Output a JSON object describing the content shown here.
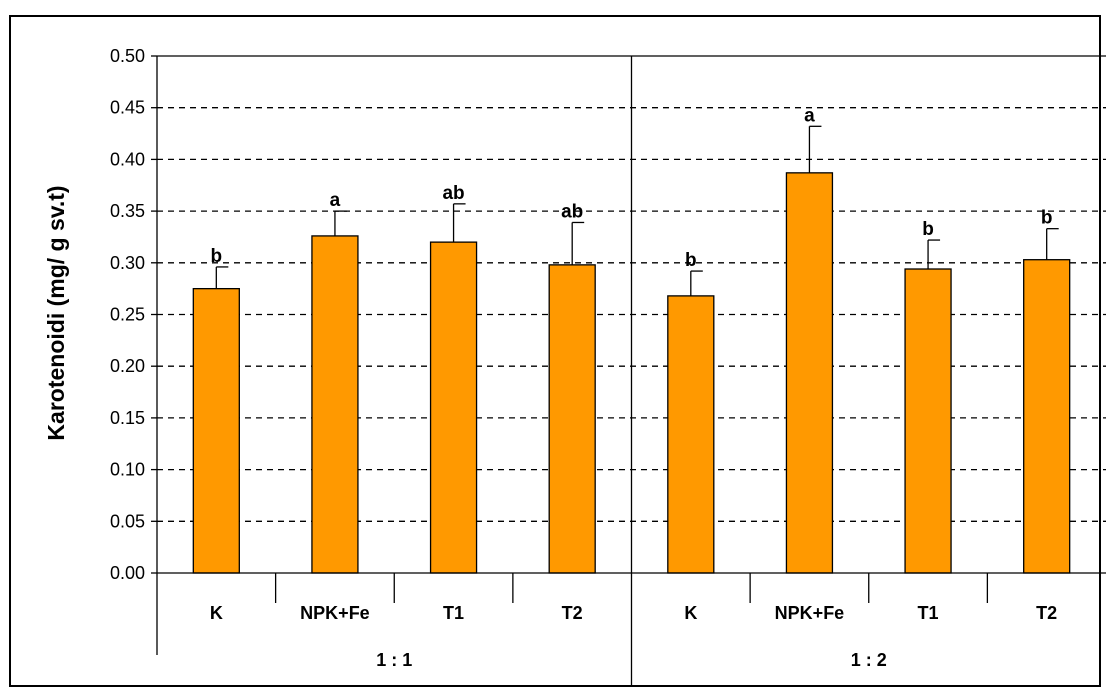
{
  "chart_data": {
    "type": "bar",
    "ylabel": "Karotenoidi (mg/ g sv.t)",
    "ylim": [
      0,
      0.5
    ],
    "yticks": [
      "0.00",
      "0.05",
      "0.10",
      "0.15",
      "0.20",
      "0.25",
      "0.30",
      "0.35",
      "0.40",
      "0.45",
      "0.50"
    ],
    "grid": "dashed-horizontal",
    "bar_color": "#FF9900",
    "groups": [
      {
        "label": "1 : 1",
        "categories": [
          "K",
          "NPK+Fe",
          "T1",
          "T2"
        ],
        "values": [
          0.275,
          0.326,
          0.32,
          0.298
        ],
        "errors": [
          0.021,
          0.024,
          0.037,
          0.041
        ],
        "significance": [
          "b",
          "a",
          "ab",
          "ab"
        ]
      },
      {
        "label": "1 : 2",
        "categories": [
          "K",
          "NPK+Fe",
          "T1",
          "T2"
        ],
        "values": [
          0.268,
          0.387,
          0.294,
          0.303
        ],
        "errors": [
          0.024,
          0.045,
          0.028,
          0.03
        ],
        "significance": [
          "b",
          "a",
          "b",
          "b"
        ]
      }
    ]
  }
}
